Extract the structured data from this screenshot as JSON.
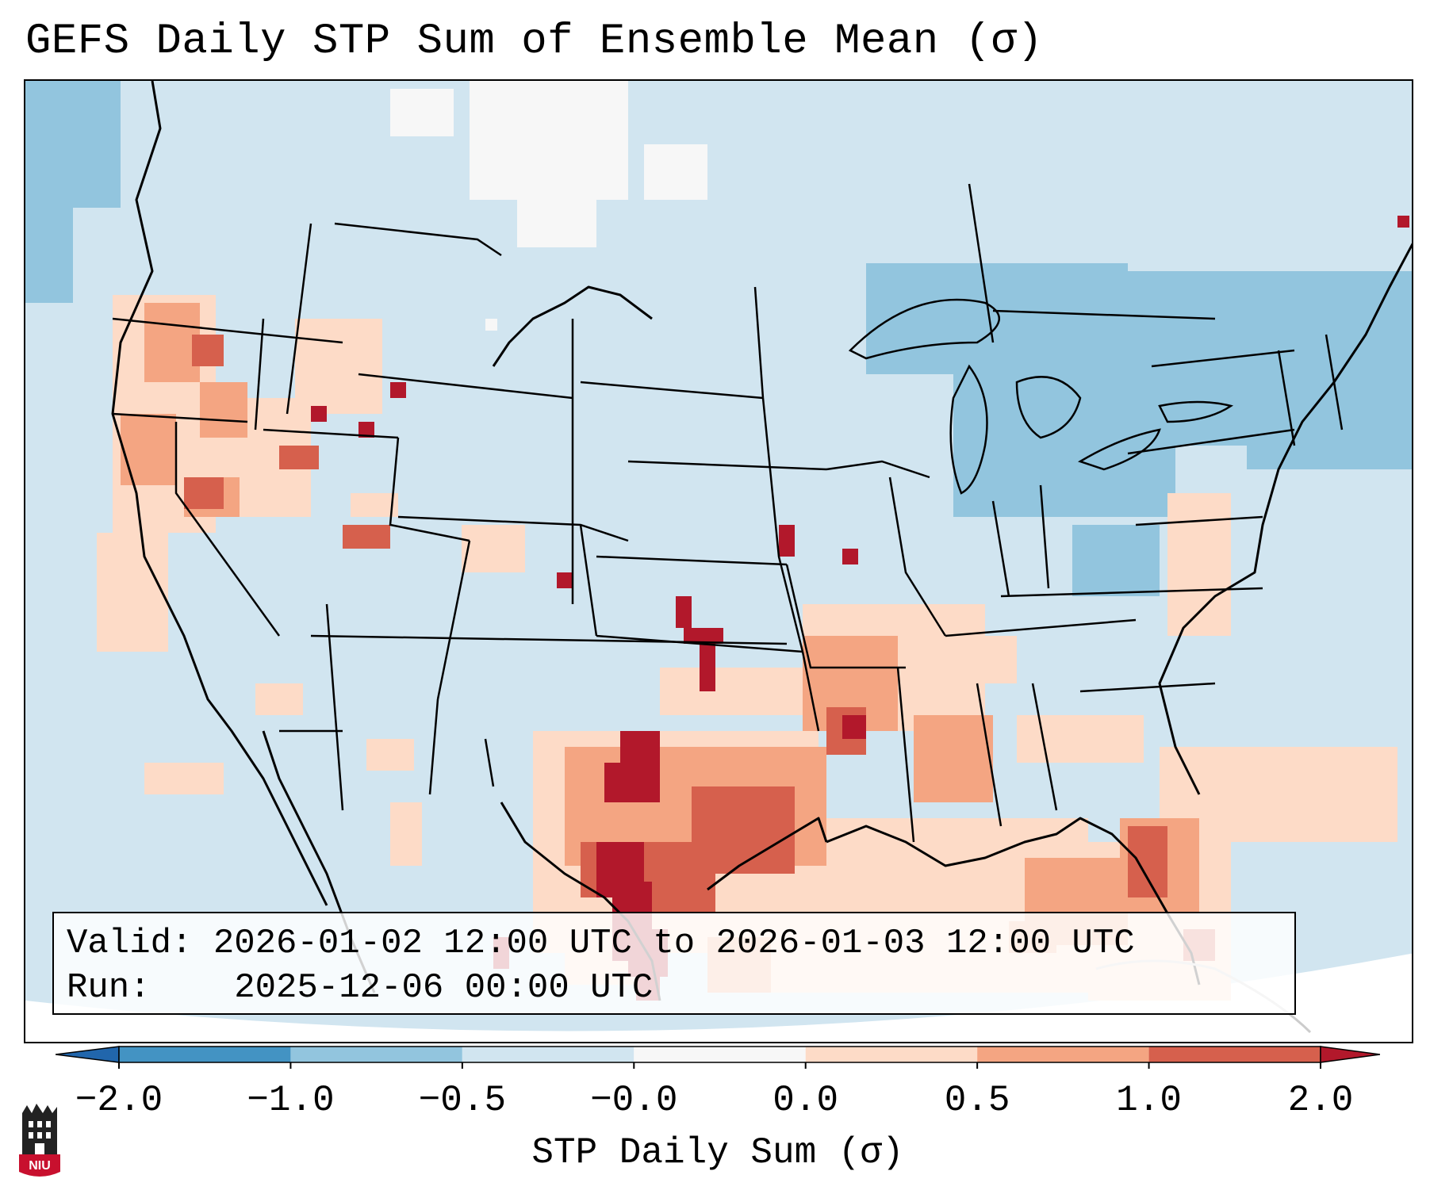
{
  "title": "GEFS Daily STP Sum of Ensemble Mean (σ)",
  "info": {
    "valid_label": "Valid:",
    "valid_value": "2026-01-02 12:00 UTC to 2026-01-03 12:00 UTC",
    "run_label": "Run:",
    "run_value": "2025-12-06 00:00 UTC"
  },
  "colorbar": {
    "label": "STP Daily Sum (σ)",
    "ticks": [
      "−2.0",
      "−1.0",
      "−0.5",
      "−0.0",
      "0.0",
      "0.5",
      "1.0",
      "2.0"
    ],
    "bins": [
      {
        "from": "−2.0",
        "to": "−1.0",
        "color": "#4393c3"
      },
      {
        "from": "−1.0",
        "to": "−0.5",
        "color": "#92c5de"
      },
      {
        "from": "−0.5",
        "to": "−0.0",
        "color": "#d1e5f0"
      },
      {
        "from": "−0.0",
        "to": "0.0",
        "color": "#f7f7f7"
      },
      {
        "from": "0.0",
        "to": "0.5",
        "color": "#fddbc7"
      },
      {
        "from": "0.5",
        "to": "1.0",
        "color": "#f4a582"
      },
      {
        "from": "1.0",
        "to": "2.0",
        "color": "#d6604d"
      }
    ],
    "under_color": "#2166ac",
    "over_color": "#b2182b"
  },
  "map": {
    "background_color": "#d1e5f0",
    "region": "Contiguous United States",
    "hotspots": [
      {
        "region": "Texas",
        "level": "above 2.0"
      },
      {
        "region": "Kansas / Oklahoma",
        "level": "above 2.0"
      },
      {
        "region": "Louisiana / Arkansas",
        "level": "1.0 to 2.0"
      },
      {
        "region": "Florida peninsula",
        "level": "0.5 to 2.0"
      },
      {
        "region": "Oregon / Northern California",
        "level": "0.5 to 2.0"
      },
      {
        "region": "Great Lakes",
        "level": "−1.0 to −0.5"
      }
    ]
  },
  "logo": {
    "text": "NIU"
  }
}
